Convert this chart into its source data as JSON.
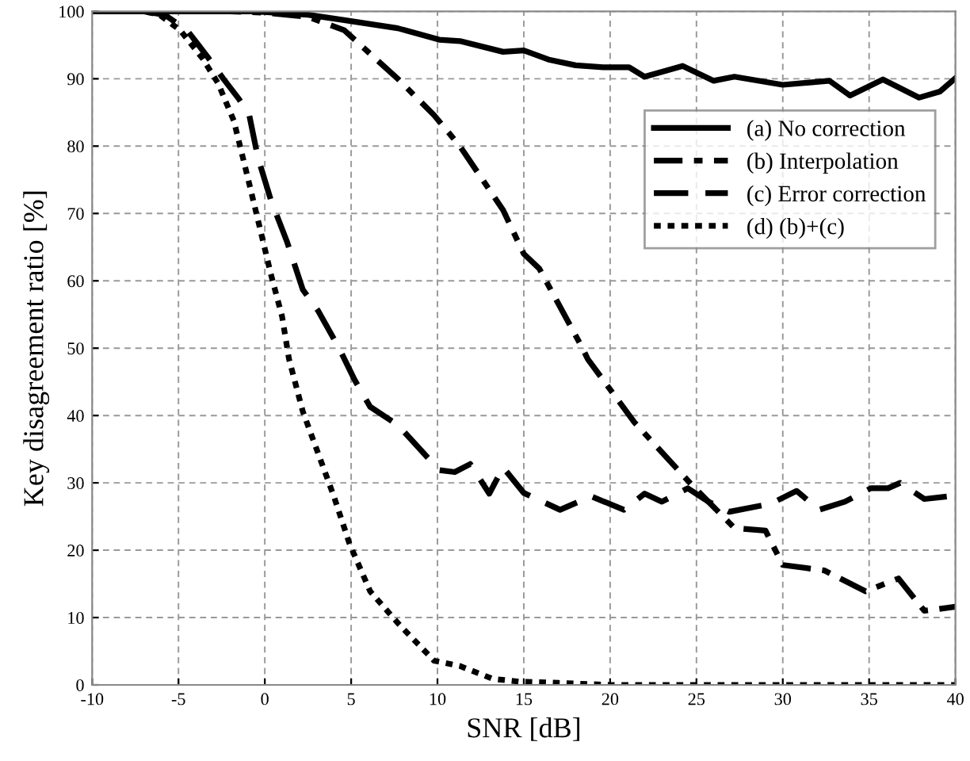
{
  "chart_data": {
    "type": "line",
    "xlabel": "SNR [dB]",
    "ylabel": "Key disagreement ratio [%]",
    "xlim": [
      -10,
      40
    ],
    "ylim": [
      0,
      100
    ],
    "xticks": [
      -10,
      -5,
      0,
      5,
      10,
      15,
      20,
      25,
      30,
      35,
      40
    ],
    "yticks": [
      0,
      10,
      20,
      30,
      40,
      50,
      60,
      70,
      80,
      90,
      100
    ],
    "grid": true,
    "legend": "top right",
    "marker": "none",
    "series": [
      {
        "name": "(a) No correction",
        "color": "#000000",
        "line_style": "solid",
        "x": [
          -10,
          -0.6,
          2.5,
          4.6,
          7.7,
          10.1,
          11.3,
          13.8,
          15,
          16.5,
          18,
          19.6,
          21.1,
          22,
          24.2,
          26,
          27.2,
          30,
          32.7,
          33.9,
          35.8,
          37.9,
          39.1,
          40
        ],
        "values": [
          100,
          100,
          99.5,
          98.7,
          97.5,
          95.8,
          95.6,
          94,
          94.2,
          92.8,
          92,
          91.7,
          91.7,
          90.3,
          91.9,
          89.7,
          90.3,
          89.1,
          89.7,
          87.5,
          89.9,
          87.2,
          88.1,
          90.1
        ]
      },
      {
        "name": "(b) Interpolation",
        "color": "#000000",
        "line_style": "dashdot",
        "x": [
          -10,
          -2,
          0,
          2.5,
          4.6,
          7.7,
          9.8,
          11.3,
          13.8,
          15,
          15.9,
          18.4,
          18.7,
          21.4,
          24.8,
          27.2,
          29,
          30,
          32.4,
          34.8,
          36.7,
          38.2,
          40
        ],
        "values": [
          100,
          100,
          99.8,
          99.2,
          97.2,
          90,
          84.6,
          80,
          70.5,
          64,
          61.8,
          50,
          48.4,
          39,
          29.5,
          23.3,
          22.9,
          17.8,
          17,
          13.9,
          15.8,
          11,
          11.6
        ]
      },
      {
        "name": "(c) Error correction",
        "color": "#000000",
        "line_style": "dashed",
        "x": [
          -10,
          -7,
          -5.8,
          -4.5,
          -3.3,
          -2.4,
          -1.5,
          -0.9,
          -0.4,
          0.35,
          1.3,
          2.2,
          3.1,
          4.3,
          5.2,
          6.1,
          7.7,
          10.1,
          11,
          11.9,
          13,
          13.8,
          15,
          17.1,
          18.9,
          20.8,
          22,
          23,
          24.5,
          25.7,
          26.9,
          29.3,
          30.8,
          32.1,
          33.6,
          35.1,
          36.1,
          36.8,
          38.2,
          40
        ],
        "values": [
          100,
          100,
          99.5,
          97.2,
          93.2,
          90,
          87,
          84.6,
          78.3,
          72,
          65.7,
          58.7,
          55.5,
          50,
          45.3,
          41.3,
          38.6,
          31.9,
          31.6,
          32.8,
          28.4,
          32.3,
          28.5,
          26,
          28,
          26,
          28.4,
          27.2,
          29.2,
          27.2,
          25.7,
          26.9,
          28.8,
          26,
          27.2,
          29.2,
          29.2,
          30,
          27.6,
          28.1
        ]
      },
      {
        "name": "(d) (b)+(c)",
        "color": "#000000",
        "line_style": "dotted",
        "x": [
          -10,
          -7,
          -6.1,
          -4.9,
          -3.6,
          -2.7,
          -1.8,
          -1.5,
          -0.9,
          -0.3,
          0.35,
          1,
          1.4,
          2.2,
          3.1,
          4,
          4.9,
          6.1,
          7.7,
          8.9,
          9.8,
          11.3,
          13.2,
          14.7,
          17,
          20,
          25,
          30,
          35,
          40
        ],
        "values": [
          100,
          100,
          99.5,
          97.2,
          93,
          89.3,
          83.8,
          80.7,
          74.4,
          68,
          61,
          54.7,
          48.4,
          40.6,
          34.3,
          28,
          21,
          13.9,
          9.2,
          6,
          3.6,
          2.8,
          0.9,
          0.5,
          0.3,
          0,
          0,
          0,
          0,
          0
        ]
      }
    ]
  }
}
